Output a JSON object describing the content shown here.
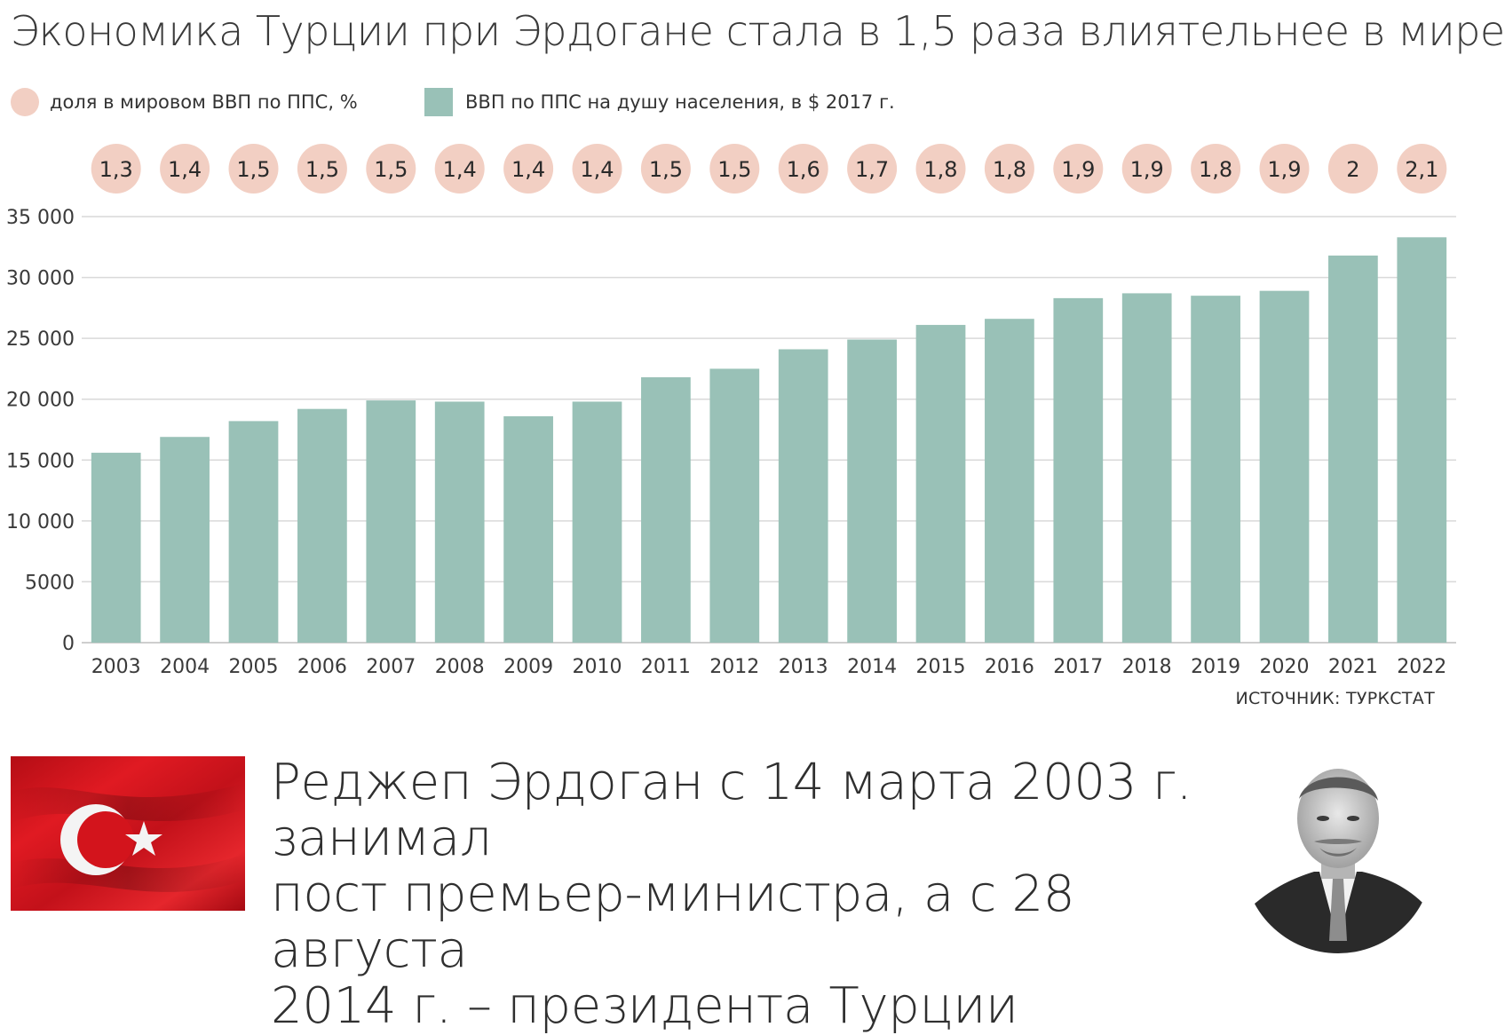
{
  "title": "Экономика Турции при Эрдогане стала в 1,5 раза влиятельнее в мире",
  "legend": {
    "share_label": "доля в мировом ВВП по ППС, %",
    "gdp_label": "ВВП по ППС на душу населения, в $ 2017 г."
  },
  "colors": {
    "bar": "#99c1b7",
    "circle": "#f2cfc3",
    "gridline": "#d9d9d9",
    "axis_text": "#3a3a3a",
    "flag_red": "#d8141e"
  },
  "chart_data": {
    "type": "bar",
    "categories": [
      "2003",
      "2004",
      "2005",
      "2006",
      "2007",
      "2008",
      "2009",
      "2010",
      "2011",
      "2012",
      "2013",
      "2014",
      "2015",
      "2016",
      "2017",
      "2018",
      "2019",
      "2020",
      "2021",
      "2022"
    ],
    "series": [
      {
        "name": "ВВП по ППС на душу населения, в $ 2017 г.",
        "values": [
          15600,
          16900,
          18200,
          19200,
          19900,
          19800,
          18600,
          19800,
          21800,
          22500,
          24100,
          24900,
          26100,
          26600,
          28300,
          28700,
          28500,
          28900,
          31800,
          33300
        ]
      },
      {
        "name": "доля в мировом ВВП по ППС, %",
        "values": [
          1.3,
          1.4,
          1.5,
          1.5,
          1.5,
          1.4,
          1.4,
          1.4,
          1.5,
          1.5,
          1.6,
          1.7,
          1.8,
          1.8,
          1.9,
          1.9,
          1.8,
          1.9,
          2,
          2.1
        ],
        "labels": [
          "1,3",
          "1,4",
          "1,5",
          "1,5",
          "1,5",
          "1,4",
          "1,4",
          "1,4",
          "1,5",
          "1,5",
          "1,6",
          "1,7",
          "1,8",
          "1,8",
          "1,9",
          "1,9",
          "1,8",
          "1,9",
          "2",
          "2,1"
        ]
      }
    ],
    "ylim": [
      0,
      35000
    ],
    "yticks": [
      0,
      5000,
      10000,
      15000,
      20000,
      25000,
      30000,
      35000
    ],
    "ytick_labels": [
      "0",
      "5000",
      "10 000",
      "15 000",
      "20 000",
      "25 000",
      "30 000",
      "35 000"
    ],
    "grid": true
  },
  "source": "ИСТОЧНИК: ТУРКСТАТ",
  "caption": {
    "line1": "Реджеп Эрдоган с 14 марта 2003 г. занимал",
    "line2": "пост премьер-министра, а с 28 августа",
    "line3": "2014 г. – президента Турции"
  }
}
